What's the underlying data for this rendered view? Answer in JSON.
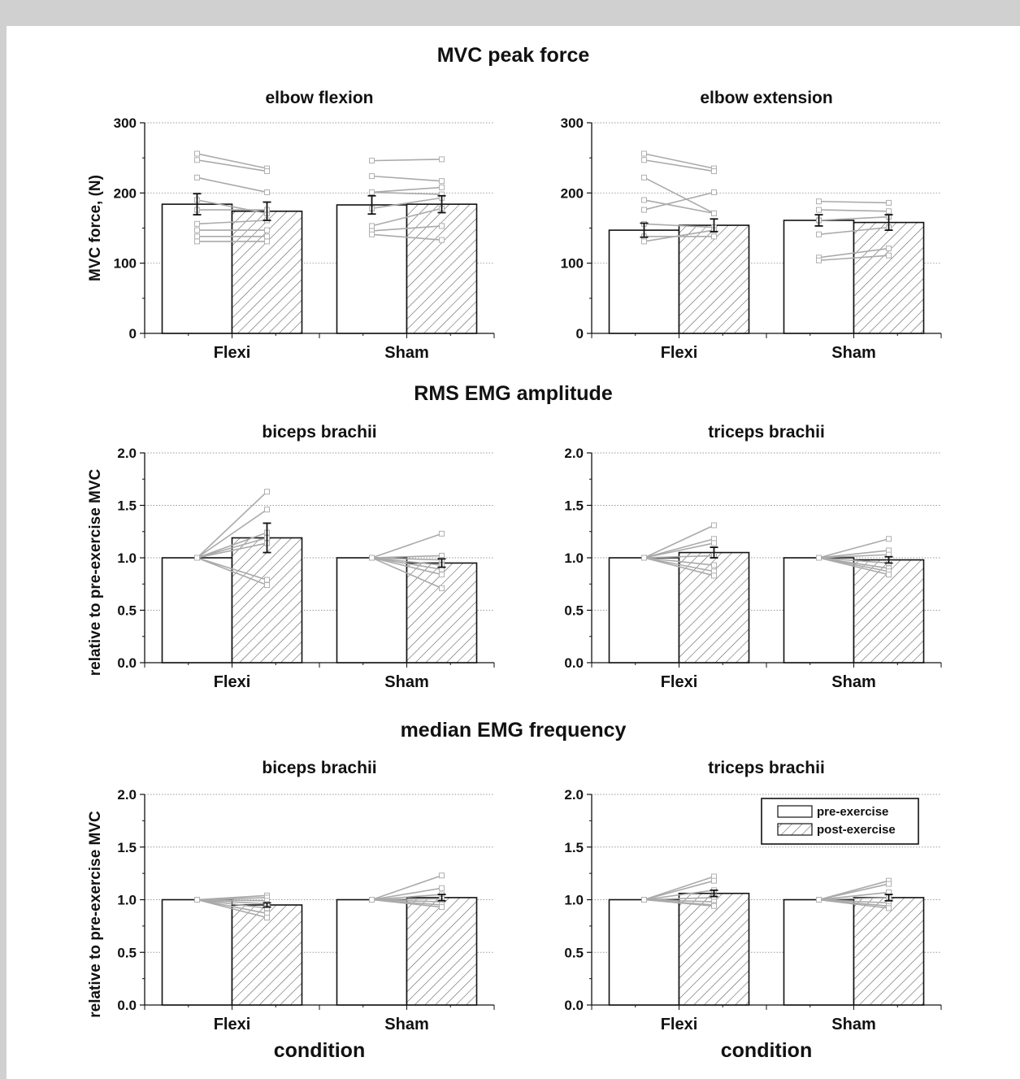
{
  "colors": {
    "page_background": "#d0d0d0",
    "panel_background": "#ffffff",
    "pre_bar_fill": "#ffffff",
    "post_bar_hatch": "#555555",
    "individual_lines": "#aaaaaa",
    "gridline": "#999999"
  },
  "sections": {
    "mvc": "MVC peak force",
    "rms": "RMS EMG amplitude",
    "mdf": "median EMG frequency"
  },
  "legend": {
    "pre_label": "pre-exercise",
    "post_label": "post-exercise",
    "placement": "top-right of last panel"
  },
  "chart_data": [
    {
      "type": "bar",
      "title": "elbow flexion",
      "ylabel": "MVC force, (N)",
      "xlabel": "",
      "ylim": [
        0,
        300
      ],
      "yticks": [
        "0",
        "100",
        "200",
        "300"
      ],
      "categories": [
        "Flexi",
        "Sham"
      ],
      "grid": true,
      "series": [
        {
          "name": "pre-exercise",
          "values": [
            184,
            183
          ],
          "error": [
            15,
            13
          ]
        },
        {
          "name": "post-exercise",
          "values": [
            174,
            184
          ],
          "error": [
            13,
            12
          ]
        }
      ],
      "individual": [
        {
          "pre": [
            256,
            247,
            222,
            190,
            176,
            156,
            147,
            138,
            131
          ],
          "post": [
            235,
            231,
            201,
            171,
            176,
            161,
            147,
            138,
            131
          ]
        },
        {
          "pre": [
            246,
            224,
            201,
            201,
            178,
            153,
            146,
            141
          ],
          "post": [
            248,
            217,
            208,
            198,
            193,
            178,
            153,
            133
          ]
        }
      ]
    },
    {
      "type": "bar",
      "title": "elbow extension",
      "ylabel": "",
      "xlabel": "",
      "ylim": [
        0,
        300
      ],
      "yticks": [
        "0",
        "100",
        "200",
        "300"
      ],
      "categories": [
        "Flexi",
        "Sham"
      ],
      "grid": true,
      "series": [
        {
          "name": "pre-exercise",
          "values": [
            147,
            161
          ],
          "error": [
            10,
            8
          ]
        },
        {
          "name": "post-exercise",
          "values": [
            154,
            158
          ],
          "error": [
            9,
            11
          ]
        }
      ],
      "individual": [
        {
          "pre": [
            256,
            247,
            222,
            190,
            176,
            156,
            138,
            131
          ],
          "post": [
            235,
            231,
            171,
            171,
            201,
            151,
            138,
            147
          ]
        },
        {
          "pre": [
            188,
            176,
            161,
            141,
            108,
            104
          ],
          "post": [
            186,
            174,
            166,
            151,
            121,
            111
          ]
        }
      ]
    },
    {
      "type": "bar",
      "title": "biceps brachii",
      "ylabel": "relative to pre-exercise MVC",
      "xlabel": "",
      "ylim": [
        0,
        2
      ],
      "yticks": [
        "0.0",
        "0.5",
        "1.0",
        "1.5",
        "2.0"
      ],
      "categories": [
        "Flexi",
        "Sham"
      ],
      "grid": true,
      "series": [
        {
          "name": "pre-exercise",
          "values": [
            1.0,
            1.0
          ],
          "error": [
            0,
            0
          ]
        },
        {
          "name": "post-exercise",
          "values": [
            1.19,
            0.95
          ],
          "error": [
            0.14,
            0.04
          ]
        }
      ],
      "individual": [
        {
          "pre": [
            1,
            1,
            1,
            1,
            1,
            1,
            1
          ],
          "post": [
            1.63,
            1.46,
            1.24,
            1.19,
            1.14,
            0.79,
            0.74
          ]
        },
        {
          "pre": [
            1,
            1,
            1,
            1,
            1,
            1,
            1
          ],
          "post": [
            1.23,
            1.02,
            0.98,
            0.93,
            0.89,
            0.84,
            0.71
          ]
        }
      ]
    },
    {
      "type": "bar",
      "title": "triceps brachii",
      "ylabel": "",
      "xlabel": "",
      "ylim": [
        0,
        2
      ],
      "yticks": [
        "0.0",
        "0.5",
        "1.0",
        "1.5",
        "2.0"
      ],
      "categories": [
        "Flexi",
        "Sham"
      ],
      "grid": true,
      "series": [
        {
          "name": "pre-exercise",
          "values": [
            1.0,
            1.0
          ],
          "error": [
            0,
            0
          ]
        },
        {
          "name": "post-exercise",
          "values": [
            1.05,
            0.98
          ],
          "error": [
            0.05,
            0.03
          ]
        }
      ],
      "individual": [
        {
          "pre": [
            1,
            1,
            1,
            1,
            1,
            1,
            1
          ],
          "post": [
            1.31,
            1.18,
            1.14,
            1.02,
            0.93,
            0.87,
            0.83
          ]
        },
        {
          "pre": [
            1,
            1,
            1,
            1,
            1,
            1,
            1
          ],
          "post": [
            1.18,
            1.07,
            1.03,
            0.95,
            0.9,
            0.87,
            0.84
          ]
        }
      ]
    },
    {
      "type": "bar",
      "title": "biceps brachii",
      "ylabel": "relative to pre-exercise MVC",
      "xlabel": "condition",
      "ylim": [
        0,
        2
      ],
      "yticks": [
        "0.0",
        "0.5",
        "1.0",
        "1.5",
        "2.0"
      ],
      "categories": [
        "Flexi",
        "Sham"
      ],
      "grid": true,
      "series": [
        {
          "name": "pre-exercise",
          "values": [
            1.0,
            1.0
          ],
          "error": [
            0,
            0
          ]
        },
        {
          "name": "post-exercise",
          "values": [
            0.95,
            1.02
          ],
          "error": [
            0.02,
            0.03
          ]
        }
      ],
      "individual": [
        {
          "pre": [
            1,
            1,
            1,
            1,
            1,
            1,
            1
          ],
          "post": [
            1.04,
            1.02,
            0.99,
            0.96,
            0.92,
            0.87,
            0.83
          ]
        },
        {
          "pre": [
            1,
            1,
            1,
            1,
            1,
            1,
            1
          ],
          "post": [
            1.23,
            1.11,
            1.05,
            1.01,
            0.98,
            0.95,
            0.93
          ]
        }
      ]
    },
    {
      "type": "bar",
      "title": "triceps brachii",
      "ylabel": "",
      "xlabel": "condition",
      "ylim": [
        0,
        2
      ],
      "yticks": [
        "0.0",
        "0.5",
        "1.0",
        "1.5",
        "2.0"
      ],
      "categories": [
        "Flexi",
        "Sham"
      ],
      "grid": true,
      "series": [
        {
          "name": "pre-exercise",
          "values": [
            1.0,
            1.0
          ],
          "error": [
            0,
            0
          ]
        },
        {
          "name": "post-exercise",
          "values": [
            1.06,
            1.02
          ],
          "error": [
            0.03,
            0.03
          ]
        }
      ],
      "individual": [
        {
          "pre": [
            1,
            1,
            1,
            1,
            1,
            1,
            1
          ],
          "post": [
            1.22,
            1.18,
            1.09,
            1.02,
            0.98,
            0.95,
            0.94
          ]
        },
        {
          "pre": [
            1,
            1,
            1,
            1,
            1,
            1,
            1
          ],
          "post": [
            1.18,
            1.15,
            1.07,
            1.02,
            0.97,
            0.94,
            0.92
          ]
        }
      ]
    }
  ]
}
